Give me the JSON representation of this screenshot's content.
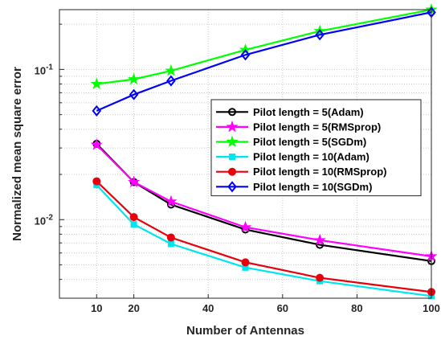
{
  "chart_data": {
    "type": "line",
    "title": "",
    "xlabel": "Number of Antennas",
    "ylabel": "Normalized mean square error",
    "xlim": [
      0,
      100
    ],
    "ylim": [
      0.003,
      0.25
    ],
    "yscale": "log",
    "x_ticks": [
      10,
      20,
      40,
      60,
      80,
      100
    ],
    "x_tick_labels": [
      "10",
      "20",
      "40",
      "60",
      "80",
      "100"
    ],
    "y_tick_labels": [
      {
        "value": 0.01,
        "base": "10",
        "exp": "-2"
      },
      {
        "value": 0.1,
        "base": "10",
        "exp": "-1"
      }
    ],
    "grid": true,
    "legend_position": "center-right",
    "x": [
      10,
      20,
      30,
      50,
      70,
      100
    ],
    "series": [
      {
        "name": "Pilot length = 5(Adam)",
        "color": "#000000",
        "marker": "circle",
        "values": [
          0.032,
          0.0178,
          0.0126,
          0.0086,
          0.0068,
          0.0053
        ]
      },
      {
        "name": "Pilot length = 5(RMSprop)",
        "color": "#ff00ff",
        "marker": "star",
        "values": [
          0.0315,
          0.0178,
          0.0132,
          0.0089,
          0.0073,
          0.0057
        ]
      },
      {
        "name": "Pilot length = 5(SGDm)",
        "color": "#00ff00",
        "marker": "star",
        "values": [
          0.08,
          0.086,
          0.098,
          0.135,
          0.18,
          0.25
        ]
      },
      {
        "name": "Pilot length = 10(Adam)",
        "color": "#00e5ee",
        "marker": "square",
        "values": [
          0.017,
          0.0093,
          0.0069,
          0.0048,
          0.0039,
          0.0031
        ]
      },
      {
        "name": "Pilot length = 10(RMSprop)",
        "color": "#e8000b",
        "marker": "circle",
        "values": [
          0.018,
          0.0104,
          0.0076,
          0.0052,
          0.0041,
          0.0033
        ]
      },
      {
        "name": "Pilot length = 10(SGDm)",
        "color": "#0000ff",
        "marker": "diamond",
        "values": [
          0.053,
          0.068,
          0.084,
          0.125,
          0.17,
          0.24
        ]
      }
    ]
  }
}
